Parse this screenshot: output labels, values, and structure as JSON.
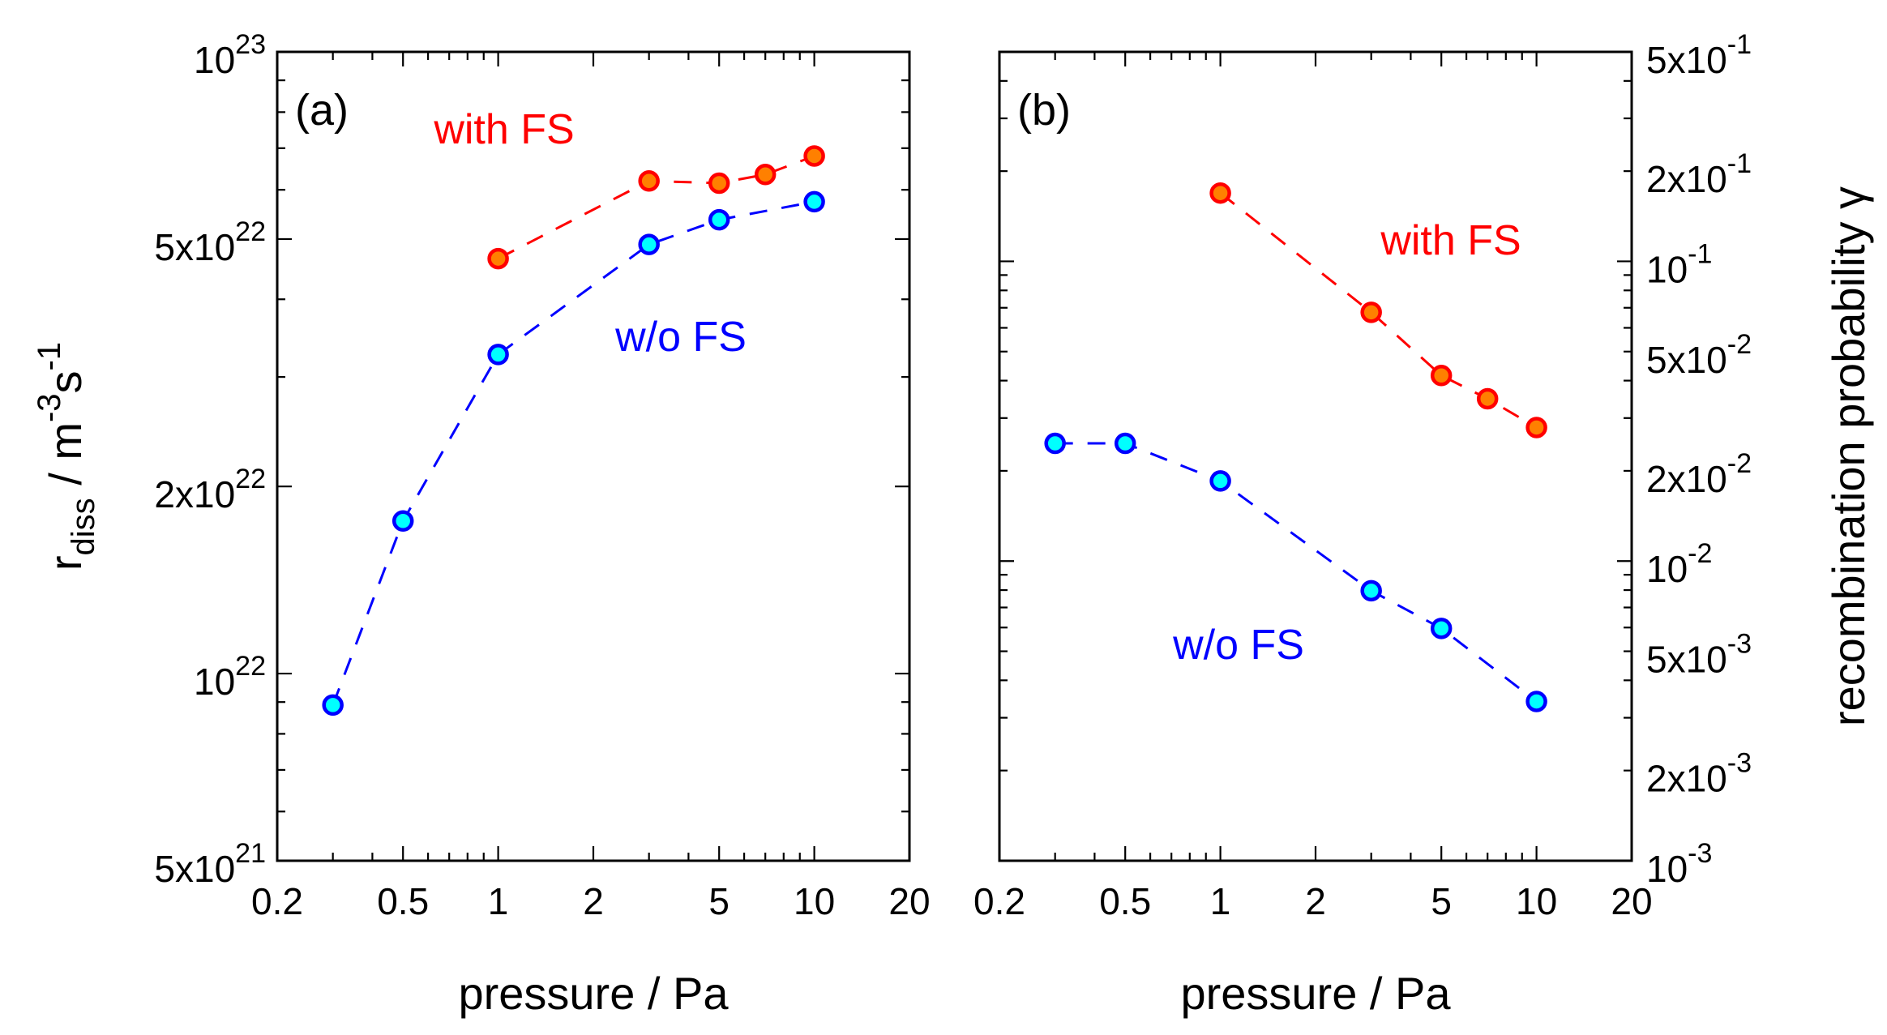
{
  "chart_data": [
    {
      "type": "line",
      "panel_label": "(a)",
      "xlabel": "pressure / Pa",
      "ylabel_main": "r",
      "ylabel_sub": "diss",
      "ylabel_rest": " / m",
      "ylabel_exp1": "-3",
      "ylabel_s": "s",
      "ylabel_exp2": "-1",
      "xscale": "log",
      "yscale": "log",
      "xlim": [
        0.2,
        20
      ],
      "ylim": [
        5e+21,
        1e+23
      ],
      "xticks": [
        {
          "v": 0.2,
          "label": "0.2"
        },
        {
          "v": 0.5,
          "label": "0.5"
        },
        {
          "v": 1,
          "label": "1"
        },
        {
          "v": 2,
          "label": "2"
        },
        {
          "v": 5,
          "label": "5"
        },
        {
          "v": 10,
          "label": "10"
        },
        {
          "v": 20,
          "label": "20"
        }
      ],
      "yticks": [
        {
          "v": 5e+21,
          "base": "5x10",
          "exp": "21"
        },
        {
          "v": 1e+22,
          "base": "10",
          "exp": "22"
        },
        {
          "v": 2e+22,
          "base": "2x10",
          "exp": "22"
        },
        {
          "v": 5e+22,
          "base": "5x10",
          "exp": "22"
        },
        {
          "v": 1e+23,
          "base": "10",
          "exp": "23"
        }
      ],
      "series": [
        {
          "name": "with FS",
          "color": "#ff0000",
          "fill": "#ff8000",
          "x": [
            1,
            3,
            5,
            7,
            10
          ],
          "y": [
            4.65e+22,
            6.2e+22,
            6.15e+22,
            6.35e+22,
            6.8e+22
          ]
        },
        {
          "name": "w/o FS",
          "color": "#0000ff",
          "fill": "#00ffff",
          "x": [
            0.3,
            0.5,
            1,
            3,
            5,
            10
          ],
          "y": [
            8.9e+21,
            1.76e+22,
            3.26e+22,
            4.9e+22,
            5.37e+22,
            5.74e+22
          ]
        }
      ]
    },
    {
      "type": "line",
      "panel_label": "(b)",
      "xlabel": "pressure / Pa",
      "ylabel": "recombination probability γ",
      "yaxis_side": "right",
      "xscale": "log",
      "yscale": "log",
      "xlim": [
        0.2,
        20
      ],
      "ylim": [
        0.001,
        0.5
      ],
      "xticks": [
        {
          "v": 0.2,
          "label": "0.2"
        },
        {
          "v": 0.5,
          "label": "0.5"
        },
        {
          "v": 1,
          "label": "1"
        },
        {
          "v": 2,
          "label": "2"
        },
        {
          "v": 5,
          "label": "5"
        },
        {
          "v": 10,
          "label": "10"
        },
        {
          "v": 20,
          "label": "20"
        }
      ],
      "yticks": [
        {
          "v": 0.001,
          "base": "10",
          "exp": "-3"
        },
        {
          "v": 0.002,
          "base": "2x10",
          "exp": "-3"
        },
        {
          "v": 0.005,
          "base": "5x10",
          "exp": "-3"
        },
        {
          "v": 0.01,
          "base": "10",
          "exp": "-2"
        },
        {
          "v": 0.02,
          "base": "2x10",
          "exp": "-2"
        },
        {
          "v": 0.05,
          "base": "5x10",
          "exp": "-2"
        },
        {
          "v": 0.1,
          "base": "10",
          "exp": "-1"
        },
        {
          "v": 0.2,
          "base": "2x10",
          "exp": "-1"
        },
        {
          "v": 0.5,
          "base": "5x10",
          "exp": "-1"
        }
      ],
      "series": [
        {
          "name": "with FS",
          "color": "#ff0000",
          "fill": "#ff8000",
          "x": [
            1,
            3,
            5,
            7,
            10
          ],
          "y": [
            0.169,
            0.0676,
            0.0416,
            0.0348,
            0.0279
          ]
        },
        {
          "name": "w/o FS",
          "color": "#0000ff",
          "fill": "#00ffff",
          "x": [
            0.3,
            0.5,
            1,
            3,
            5,
            10
          ],
          "y": [
            0.0247,
            0.0247,
            0.0185,
            0.00796,
            0.00596,
            0.0034
          ]
        }
      ]
    }
  ]
}
